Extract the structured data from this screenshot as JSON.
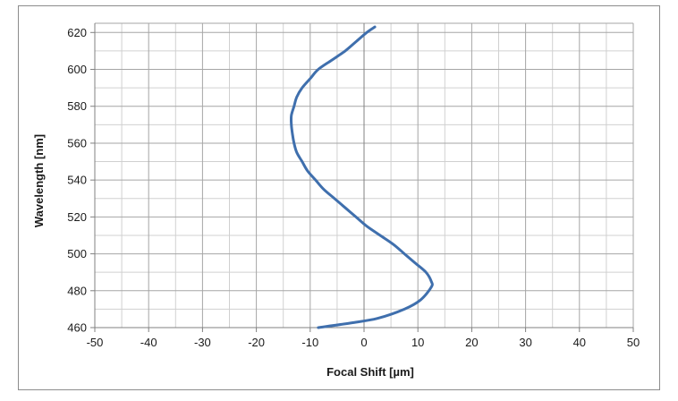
{
  "chart_data": {
    "type": "line",
    "title": "",
    "xlabel": "Focal Shift [µm]",
    "ylabel": "Wavelength [nm]",
    "xlim": [
      -50,
      50
    ],
    "ylim": [
      460,
      625
    ],
    "x_ticks": [
      -50,
      -40,
      -30,
      -20,
      -10,
      0,
      10,
      20,
      30,
      40,
      50
    ],
    "y_ticks": [
      460,
      480,
      500,
      520,
      540,
      560,
      580,
      600,
      620
    ],
    "x_minor_step": 5,
    "y_minor_step": 10,
    "grid": true,
    "legend": "none",
    "series": [
      {
        "color": "#3f6fad",
        "points": [
          [
            -8.5,
            460
          ],
          [
            -2.5,
            462.5
          ],
          [
            2.5,
            465
          ],
          [
            7.5,
            470
          ],
          [
            10.5,
            475
          ],
          [
            12.5,
            482
          ],
          [
            12.5,
            485
          ],
          [
            11.5,
            490
          ],
          [
            9.5,
            495
          ],
          [
            7.5,
            500
          ],
          [
            5.5,
            505
          ],
          [
            3,
            510
          ],
          [
            0.5,
            515
          ],
          [
            -1.5,
            520
          ],
          [
            -3.5,
            525
          ],
          [
            -5.5,
            530
          ],
          [
            -7.5,
            535
          ],
          [
            -9,
            540
          ],
          [
            -10.5,
            545
          ],
          [
            -11.5,
            550
          ],
          [
            -12.5,
            555
          ],
          [
            -13,
            560
          ],
          [
            -13.3,
            565
          ],
          [
            -13.5,
            570
          ],
          [
            -13.5,
            575
          ],
          [
            -13,
            580
          ],
          [
            -12.5,
            585
          ],
          [
            -11.5,
            590
          ],
          [
            -10,
            595
          ],
          [
            -8.5,
            600
          ],
          [
            -6,
            605
          ],
          [
            -3.5,
            610
          ],
          [
            -1.5,
            615
          ],
          [
            0.5,
            620
          ],
          [
            2,
            623
          ]
        ]
      }
    ]
  }
}
